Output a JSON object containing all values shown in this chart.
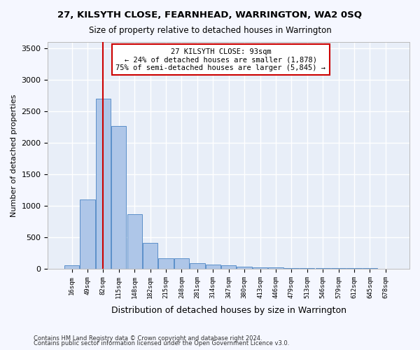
{
  "title1": "27, KILSYTH CLOSE, FEARNHEAD, WARRINGTON, WA2 0SQ",
  "title2": "Size of property relative to detached houses in Warrington",
  "xlabel": "Distribution of detached houses by size in Warrington",
  "ylabel": "Number of detached properties",
  "bar_values": [
    50,
    1100,
    2700,
    2270,
    870,
    410,
    170,
    165,
    90,
    65,
    50,
    35,
    25,
    20,
    15,
    10,
    5,
    5,
    5,
    5,
    3
  ],
  "bar_labels": [
    "16sqm",
    "49sqm",
    "82sqm",
    "115sqm",
    "148sqm",
    "182sqm",
    "215sqm",
    "248sqm",
    "281sqm",
    "314sqm",
    "347sqm",
    "380sqm",
    "413sqm",
    "446sqm",
    "479sqm",
    "513sqm",
    "546sqm",
    "579sqm",
    "612sqm",
    "645sqm",
    "678sqm"
  ],
  "bar_color": "#aec6e8",
  "bar_edge_color": "#5b8fc9",
  "vline_x": 2,
  "vline_color": "#cc0000",
  "annotation_text": "27 KILSYTH CLOSE: 93sqm\n← 24% of detached houses are smaller (1,878)\n75% of semi-detached houses are larger (5,845) →",
  "annotation_box_color": "#ffffff",
  "annotation_box_edge": "#cc0000",
  "ylim": [
    0,
    3600
  ],
  "yticks": [
    0,
    500,
    1000,
    1500,
    2000,
    2500,
    3000,
    3500
  ],
  "background_color": "#e8eef8",
  "grid_color": "#ffffff",
  "footer1": "Contains HM Land Registry data © Crown copyright and database right 2024.",
  "footer2": "Contains public sector information licensed under the Open Government Licence v3.0."
}
